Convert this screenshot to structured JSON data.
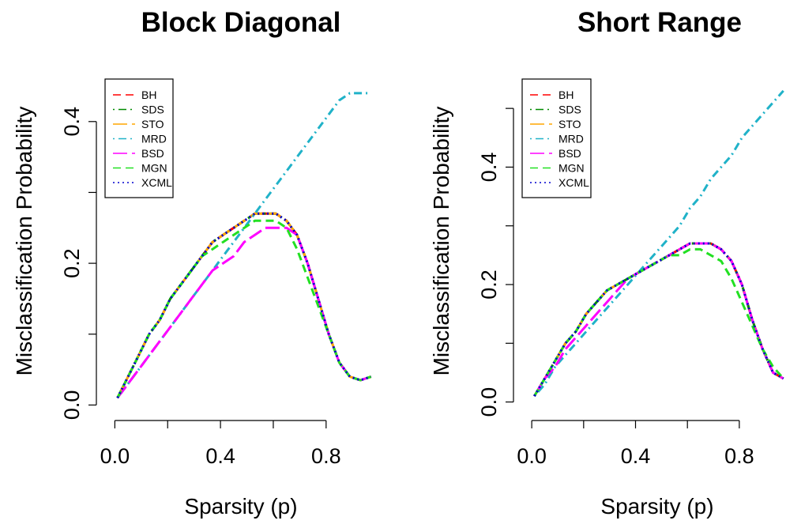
{
  "chart_data": [
    {
      "type": "line",
      "title": "Block Diagonal",
      "xlabel": "Sparsity (p)",
      "ylabel": "Misclassification Probability",
      "xlim": [
        -0.04,
        0.98
      ],
      "ylim": [
        -0.004,
        0.46
      ],
      "xticks": [
        0.0,
        0.2,
        0.4,
        0.6,
        0.8
      ],
      "xtick_labels": [
        "0.0",
        "",
        "0.4",
        "",
        "0.8"
      ],
      "yticks": [
        0.0,
        0.1,
        0.2,
        0.3,
        0.4
      ],
      "ytick_labels": [
        "0.0",
        "",
        "0.2",
        "",
        "0.4"
      ],
      "legend_position": "top-left",
      "x": [
        0.01,
        0.05,
        0.09,
        0.13,
        0.17,
        0.21,
        0.25,
        0.29,
        0.33,
        0.37,
        0.41,
        0.45,
        0.49,
        0.53,
        0.57,
        0.61,
        0.65,
        0.69,
        0.73,
        0.77,
        0.81,
        0.85,
        0.89,
        0.93,
        0.97
      ],
      "series": [
        {
          "name": "BH",
          "color": "#FF0000",
          "dash": "dashed",
          "values": [
            0.01,
            0.04,
            0.07,
            0.1,
            0.12,
            0.15,
            0.17,
            0.19,
            0.21,
            0.23,
            0.24,
            0.25,
            0.26,
            0.27,
            0.27,
            0.27,
            0.26,
            0.24,
            0.2,
            0.15,
            0.1,
            0.06,
            0.04,
            0.035,
            0.04
          ]
        },
        {
          "name": "SDS",
          "color": "#008B00",
          "dash": "dotdash",
          "values": [
            0.01,
            0.04,
            0.07,
            0.1,
            0.12,
            0.15,
            0.17,
            0.19,
            0.21,
            0.23,
            0.24,
            0.25,
            0.26,
            0.27,
            0.27,
            0.27,
            0.26,
            0.24,
            0.2,
            0.15,
            0.1,
            0.06,
            0.04,
            0.035,
            0.04
          ]
        },
        {
          "name": "STO",
          "color": "#FFA500",
          "dash": "longdash",
          "values": [
            0.01,
            0.04,
            0.07,
            0.1,
            0.12,
            0.15,
            0.17,
            0.19,
            0.21,
            0.23,
            0.24,
            0.25,
            0.26,
            0.27,
            0.27,
            0.27,
            0.26,
            0.24,
            0.2,
            0.15,
            0.1,
            0.06,
            0.04,
            0.035,
            0.04
          ]
        },
        {
          "name": "MRD",
          "color": "#20B2C8",
          "dash": "dotdash",
          "values": [
            0.01,
            0.03,
            0.05,
            0.07,
            0.09,
            0.11,
            0.13,
            0.15,
            0.17,
            0.19,
            0.21,
            0.23,
            0.25,
            0.27,
            0.29,
            0.31,
            0.33,
            0.35,
            0.37,
            0.39,
            0.41,
            0.43,
            0.44,
            0.44,
            0.44
          ]
        },
        {
          "name": "BSD",
          "color": "#FF00FF",
          "dash": "longdash",
          "values": [
            0.01,
            0.03,
            0.05,
            0.07,
            0.09,
            0.11,
            0.13,
            0.15,
            0.17,
            0.19,
            0.2,
            0.21,
            0.23,
            0.24,
            0.25,
            0.25,
            0.25,
            0.24,
            0.2,
            0.15,
            0.1,
            0.06,
            0.04,
            0.035,
            0.04
          ]
        },
        {
          "name": "MGN",
          "color": "#22E022",
          "dash": "dashed",
          "values": [
            0.01,
            0.04,
            0.07,
            0.1,
            0.12,
            0.15,
            0.17,
            0.19,
            0.21,
            0.22,
            0.23,
            0.24,
            0.25,
            0.26,
            0.26,
            0.26,
            0.25,
            0.22,
            0.18,
            0.14,
            0.1,
            0.06,
            0.04,
            0.035,
            0.04
          ]
        },
        {
          "name": "XCML",
          "color": "#0000CD",
          "dash": "dotted",
          "values": [
            0.01,
            0.04,
            0.07,
            0.1,
            0.12,
            0.15,
            0.17,
            0.19,
            0.21,
            0.23,
            0.24,
            0.25,
            0.26,
            0.27,
            0.27,
            0.27,
            0.26,
            0.24,
            0.2,
            0.15,
            0.1,
            0.06,
            0.04,
            0.035,
            0.04
          ]
        }
      ]
    },
    {
      "type": "line",
      "title": "Short Range",
      "xlabel": "Sparsity (p)",
      "ylabel": "Misclassification Probability",
      "xlim": [
        -0.04,
        0.98
      ],
      "ylim": [
        -0.01,
        0.55
      ],
      "xticks": [
        0.0,
        0.2,
        0.4,
        0.6,
        0.8
      ],
      "xtick_labels": [
        "0.0",
        "",
        "0.4",
        "",
        "0.8"
      ],
      "yticks": [
        0.0,
        0.1,
        0.2,
        0.3,
        0.4,
        0.5
      ],
      "ytick_labels": [
        "0.0",
        "",
        "0.2",
        "",
        "0.4",
        ""
      ],
      "legend_position": "top-left",
      "x": [
        0.01,
        0.05,
        0.09,
        0.13,
        0.17,
        0.21,
        0.25,
        0.29,
        0.33,
        0.37,
        0.41,
        0.45,
        0.49,
        0.53,
        0.57,
        0.61,
        0.65,
        0.69,
        0.73,
        0.77,
        0.81,
        0.85,
        0.89,
        0.93,
        0.97
      ],
      "series": [
        {
          "name": "BH",
          "color": "#FF0000",
          "dash": "dashed",
          "values": [
            0.01,
            0.04,
            0.07,
            0.1,
            0.12,
            0.15,
            0.17,
            0.19,
            0.2,
            0.21,
            0.22,
            0.23,
            0.24,
            0.25,
            0.26,
            0.27,
            0.27,
            0.27,
            0.26,
            0.24,
            0.2,
            0.14,
            0.09,
            0.05,
            0.04
          ]
        },
        {
          "name": "SDS",
          "color": "#008B00",
          "dash": "dotdash",
          "values": [
            0.01,
            0.04,
            0.07,
            0.1,
            0.12,
            0.15,
            0.17,
            0.19,
            0.2,
            0.21,
            0.22,
            0.23,
            0.24,
            0.25,
            0.26,
            0.27,
            0.27,
            0.27,
            0.26,
            0.24,
            0.2,
            0.14,
            0.09,
            0.05,
            0.04
          ]
        },
        {
          "name": "STO",
          "color": "#FFA500",
          "dash": "longdash",
          "values": [
            0.01,
            0.04,
            0.07,
            0.1,
            0.12,
            0.15,
            0.17,
            0.19,
            0.2,
            0.21,
            0.22,
            0.23,
            0.24,
            0.25,
            0.26,
            0.27,
            0.27,
            0.27,
            0.26,
            0.24,
            0.2,
            0.14,
            0.09,
            0.05,
            0.04
          ]
        },
        {
          "name": "MRD",
          "color": "#20B2C8",
          "dash": "dotdash",
          "values": [
            0.01,
            0.03,
            0.06,
            0.08,
            0.1,
            0.12,
            0.14,
            0.16,
            0.18,
            0.2,
            0.22,
            0.24,
            0.26,
            0.28,
            0.3,
            0.33,
            0.35,
            0.38,
            0.4,
            0.42,
            0.45,
            0.47,
            0.49,
            0.51,
            0.53
          ]
        },
        {
          "name": "BSD",
          "color": "#FF00FF",
          "dash": "longdash",
          "values": [
            0.01,
            0.04,
            0.06,
            0.09,
            0.11,
            0.13,
            0.15,
            0.17,
            0.19,
            0.21,
            0.22,
            0.23,
            0.24,
            0.25,
            0.26,
            0.27,
            0.27,
            0.27,
            0.26,
            0.24,
            0.2,
            0.14,
            0.09,
            0.05,
            0.04
          ]
        },
        {
          "name": "MGN",
          "color": "#22E022",
          "dash": "dashed",
          "values": [
            0.01,
            0.04,
            0.07,
            0.1,
            0.12,
            0.15,
            0.17,
            0.19,
            0.2,
            0.21,
            0.22,
            0.23,
            0.24,
            0.25,
            0.25,
            0.26,
            0.26,
            0.25,
            0.24,
            0.21,
            0.17,
            0.13,
            0.09,
            0.06,
            0.04
          ]
        },
        {
          "name": "XCML",
          "color": "#0000CD",
          "dash": "dotted",
          "values": [
            0.01,
            0.04,
            0.07,
            0.1,
            0.12,
            0.15,
            0.17,
            0.19,
            0.2,
            0.21,
            0.22,
            0.23,
            0.24,
            0.25,
            0.26,
            0.27,
            0.27,
            0.27,
            0.26,
            0.24,
            0.2,
            0.14,
            0.09,
            0.05,
            0.04
          ]
        }
      ]
    }
  ]
}
